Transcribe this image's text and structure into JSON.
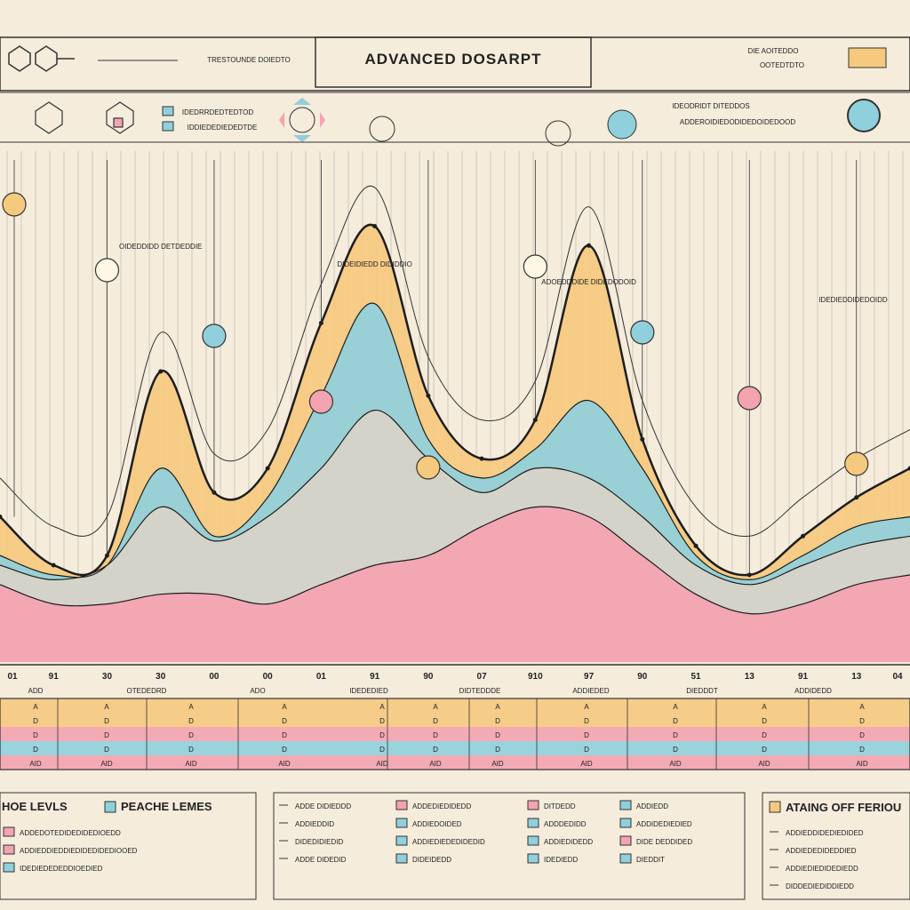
{
  "header": {
    "title": "ADVANCED DOSARPT",
    "left_caption": "TRESTOUNDE DOIEDTO",
    "right_caption_1": "DIE AOITEDDO",
    "right_caption_2": "OOTEDTDTO",
    "sub_caption_1": "IDEDRRDEDTEDTOD",
    "sub_caption_2": "IDDIEDEDIEDEDTDE",
    "info_caption_1": "IDEODRIDT DITEDDOS",
    "info_caption_2": "ADDEROIDIEDODIDEDOIDEDOOD"
  },
  "colors": {
    "peach": "#f5c97e",
    "blue": "#8fd0dc",
    "pink": "#f4a3b0",
    "grey": "#d9d3c8",
    "line": "#1d1d1d",
    "background": "#f5ecdc"
  },
  "chart_data": {
    "type": "area",
    "title": "ADVANCED DOSARPT",
    "x_tick_labels": [
      "01",
      "91",
      "30",
      "30",
      "00",
      "00",
      "01",
      "91",
      "90",
      "07",
      "910",
      "97",
      "90",
      "51",
      "13",
      "91",
      "13",
      "04"
    ],
    "x": [
      0,
      1,
      2,
      3,
      4,
      5,
      6,
      7,
      8,
      9,
      10,
      11,
      12,
      13,
      14,
      15,
      16,
      17
    ],
    "ylim": [
      0,
      100
    ],
    "series": [
      {
        "name": "Peach",
        "color": "#f5c97e",
        "values": [
          30,
          20,
          22,
          60,
          35,
          40,
          70,
          90,
          55,
          42,
          50,
          86,
          46,
          24,
          18,
          26,
          34,
          40
        ]
      },
      {
        "name": "Blue",
        "color": "#8fd0dc",
        "values": [
          22,
          18,
          20,
          40,
          26,
          34,
          55,
          74,
          46,
          38,
          44,
          54,
          40,
          22,
          17,
          22,
          28,
          30
        ]
      },
      {
        "name": "Grey",
        "color": "#d9d3c8",
        "values": [
          20,
          17,
          20,
          32,
          25,
          30,
          40,
          52,
          42,
          35,
          40,
          38,
          30,
          20,
          16,
          20,
          24,
          26
        ]
      },
      {
        "name": "Pink",
        "color": "#f4a3b0",
        "values": [
          16,
          12,
          12,
          14,
          14,
          12,
          16,
          20,
          22,
          28,
          32,
          30,
          22,
          14,
          10,
          12,
          16,
          18
        ]
      }
    ],
    "peak_labels": [
      "OIDEDDIDD DETDEDDIE",
      "DIDEIDIEDD DIDIDDIO",
      "ADOEDDDIDE DIDEDODOID",
      "IDEDIEDDIDEDOIDD"
    ],
    "table_rows": [
      {
        "color": "#f5c97e",
        "label": "A"
      },
      {
        "color": "#f5c97e",
        "label": "D"
      },
      {
        "color": "#f4a3b0",
        "label": "D"
      },
      {
        "color": "#8fd0dc",
        "label": "D"
      },
      {
        "color": "#f4a3b0",
        "label": "AID"
      }
    ],
    "table_headers": [
      "ADD",
      "OTEDEDRD",
      "ADO",
      "IDEDEDIED",
      "DIDTEDDDE",
      "ADDIEDED",
      "DIEDDDT",
      "ADDIDEDD"
    ]
  },
  "legend": {
    "panel1_title": "HOE LEVLS",
    "panel1_title2": "PEACHE LEMES",
    "panel1_items": [
      "ADDEDOTEDIDEDIDEDIOEDD",
      "ADDIEDDIEDDIEDIDEDIDEDIOOED",
      "IDEDIEDEDEDDIOEDIED"
    ],
    "panel2_items": [
      "ADDE DIDIEDDD",
      "ADDIEDDID",
      "DIDEDIDIEDID",
      "ADDE DIDEDID"
    ],
    "panel3_items": [
      "ADDEDIEDIDEDD",
      "ADDIEDOIDED",
      "ADDIEDIEDEDIDEDID",
      "DIDEIDEDD"
    ],
    "panel4_items": [
      "DITDEDD",
      "ADDDEDIDD",
      "ADDIEDIDEDD",
      "IDEDIEDD"
    ],
    "panel5_items": [
      "ADDIEDD",
      "ADDIDEDIEDIED",
      "DIDE DEDDIDED",
      "DIEDDIT"
    ],
    "panel6_title": "ATAING OFF FERIOU",
    "panel6_items": [
      "ADDIEDDIDEDIEDIDED",
      "ADDIEDEDIDEDDIED",
      "ADDIEDIEDIDEDIEDD",
      "DIDDEDIEDIDDIEDD"
    ]
  }
}
